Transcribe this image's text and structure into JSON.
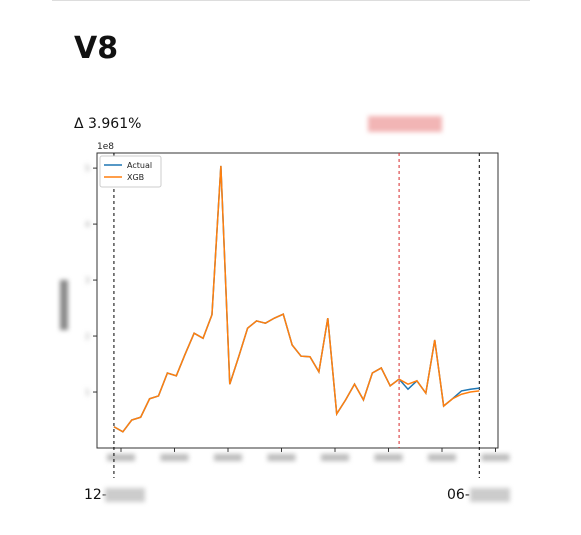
{
  "page_title": "V8",
  "delta": "Δ 3.961%",
  "start_label": "12-",
  "end_label": "06-",
  "chart_data": {
    "type": "line",
    "multiplier": "1e8",
    "ylim": [
      0,
      5.27
    ],
    "yticks": [
      1,
      2,
      3,
      4,
      5
    ],
    "legend": "upper left",
    "vlines": [
      {
        "x": 0,
        "color": "#000000"
      },
      {
        "x": 32,
        "color": "#d62728"
      },
      {
        "x": 41,
        "color": "#000000"
      }
    ],
    "x": [
      0,
      1,
      2,
      3,
      4,
      5,
      6,
      7,
      8,
      9,
      10,
      11,
      12,
      13,
      14,
      15,
      16,
      17,
      18,
      19,
      20,
      21,
      22,
      23,
      24,
      25,
      26,
      27,
      28,
      29,
      30,
      31,
      32,
      33,
      34,
      35,
      36,
      37,
      38,
      39,
      40,
      41
    ],
    "xlim": [
      -1.9,
      43.1
    ],
    "series": [
      {
        "name": "Actual",
        "color": "#1f77b4",
        "values": [
          0.38,
          0.29,
          0.5,
          0.55,
          0.88,
          0.93,
          1.34,
          1.29,
          1.68,
          2.05,
          1.96,
          2.38,
          5.04,
          1.14,
          1.63,
          2.14,
          2.27,
          2.23,
          2.32,
          2.39,
          1.84,
          1.64,
          1.63,
          1.36,
          2.32,
          0.61,
          0.86,
          1.14,
          0.86,
          1.34,
          1.43,
          1.11,
          1.23,
          1.05,
          1.2,
          0.98,
          1.93,
          0.75,
          0.88,
          1.02,
          1.05,
          1.07
        ]
      },
      {
        "name": "XGB",
        "color": "#ff7f0e",
        "values": [
          0.38,
          0.29,
          0.5,
          0.55,
          0.88,
          0.93,
          1.34,
          1.29,
          1.68,
          2.05,
          1.96,
          2.38,
          5.04,
          1.14,
          1.63,
          2.14,
          2.27,
          2.23,
          2.32,
          2.39,
          1.84,
          1.64,
          1.63,
          1.36,
          2.32,
          0.61,
          0.86,
          1.14,
          0.86,
          1.34,
          1.43,
          1.11,
          1.23,
          1.14,
          1.2,
          0.98,
          1.93,
          0.75,
          0.88,
          0.96,
          1.0,
          1.02
        ]
      }
    ]
  }
}
